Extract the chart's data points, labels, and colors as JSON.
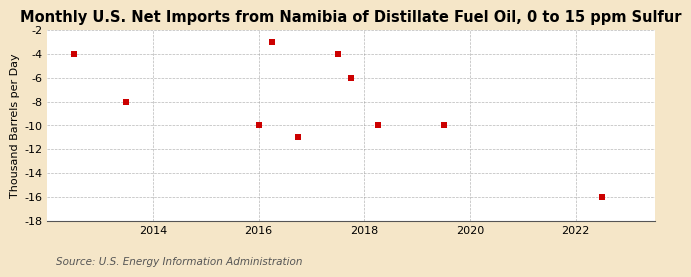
{
  "title": "Monthly U.S. Net Imports from Namibia of Distillate Fuel Oil, 0 to 15 ppm Sulfur",
  "ylabel": "Thousand Barrels per Day",
  "source": "Source: U.S. Energy Information Administration",
  "xlim": [
    2012.0,
    2023.5
  ],
  "ylim": [
    -18,
    -2
  ],
  "yticks": [
    -18,
    -16,
    -14,
    -12,
    -10,
    -8,
    -6,
    -4,
    -2
  ],
  "xticks": [
    2014,
    2016,
    2018,
    2020,
    2022
  ],
  "data_x": [
    2012.5,
    2013.5,
    2016.0,
    2016.25,
    2016.75,
    2017.5,
    2017.75,
    2018.25,
    2019.5,
    2022.5
  ],
  "data_y": [
    -4,
    -8,
    -10,
    -3,
    -11,
    -4,
    -6,
    -10,
    -10,
    -16
  ],
  "marker_color": "#cc0000",
  "marker": "s",
  "marker_size": 4,
  "figure_background": "#f5e6c8",
  "axes_background": "#ffffff",
  "grid_color": "#999999",
  "title_fontsize": 10.5,
  "label_fontsize": 8,
  "tick_fontsize": 8,
  "source_fontsize": 7.5
}
